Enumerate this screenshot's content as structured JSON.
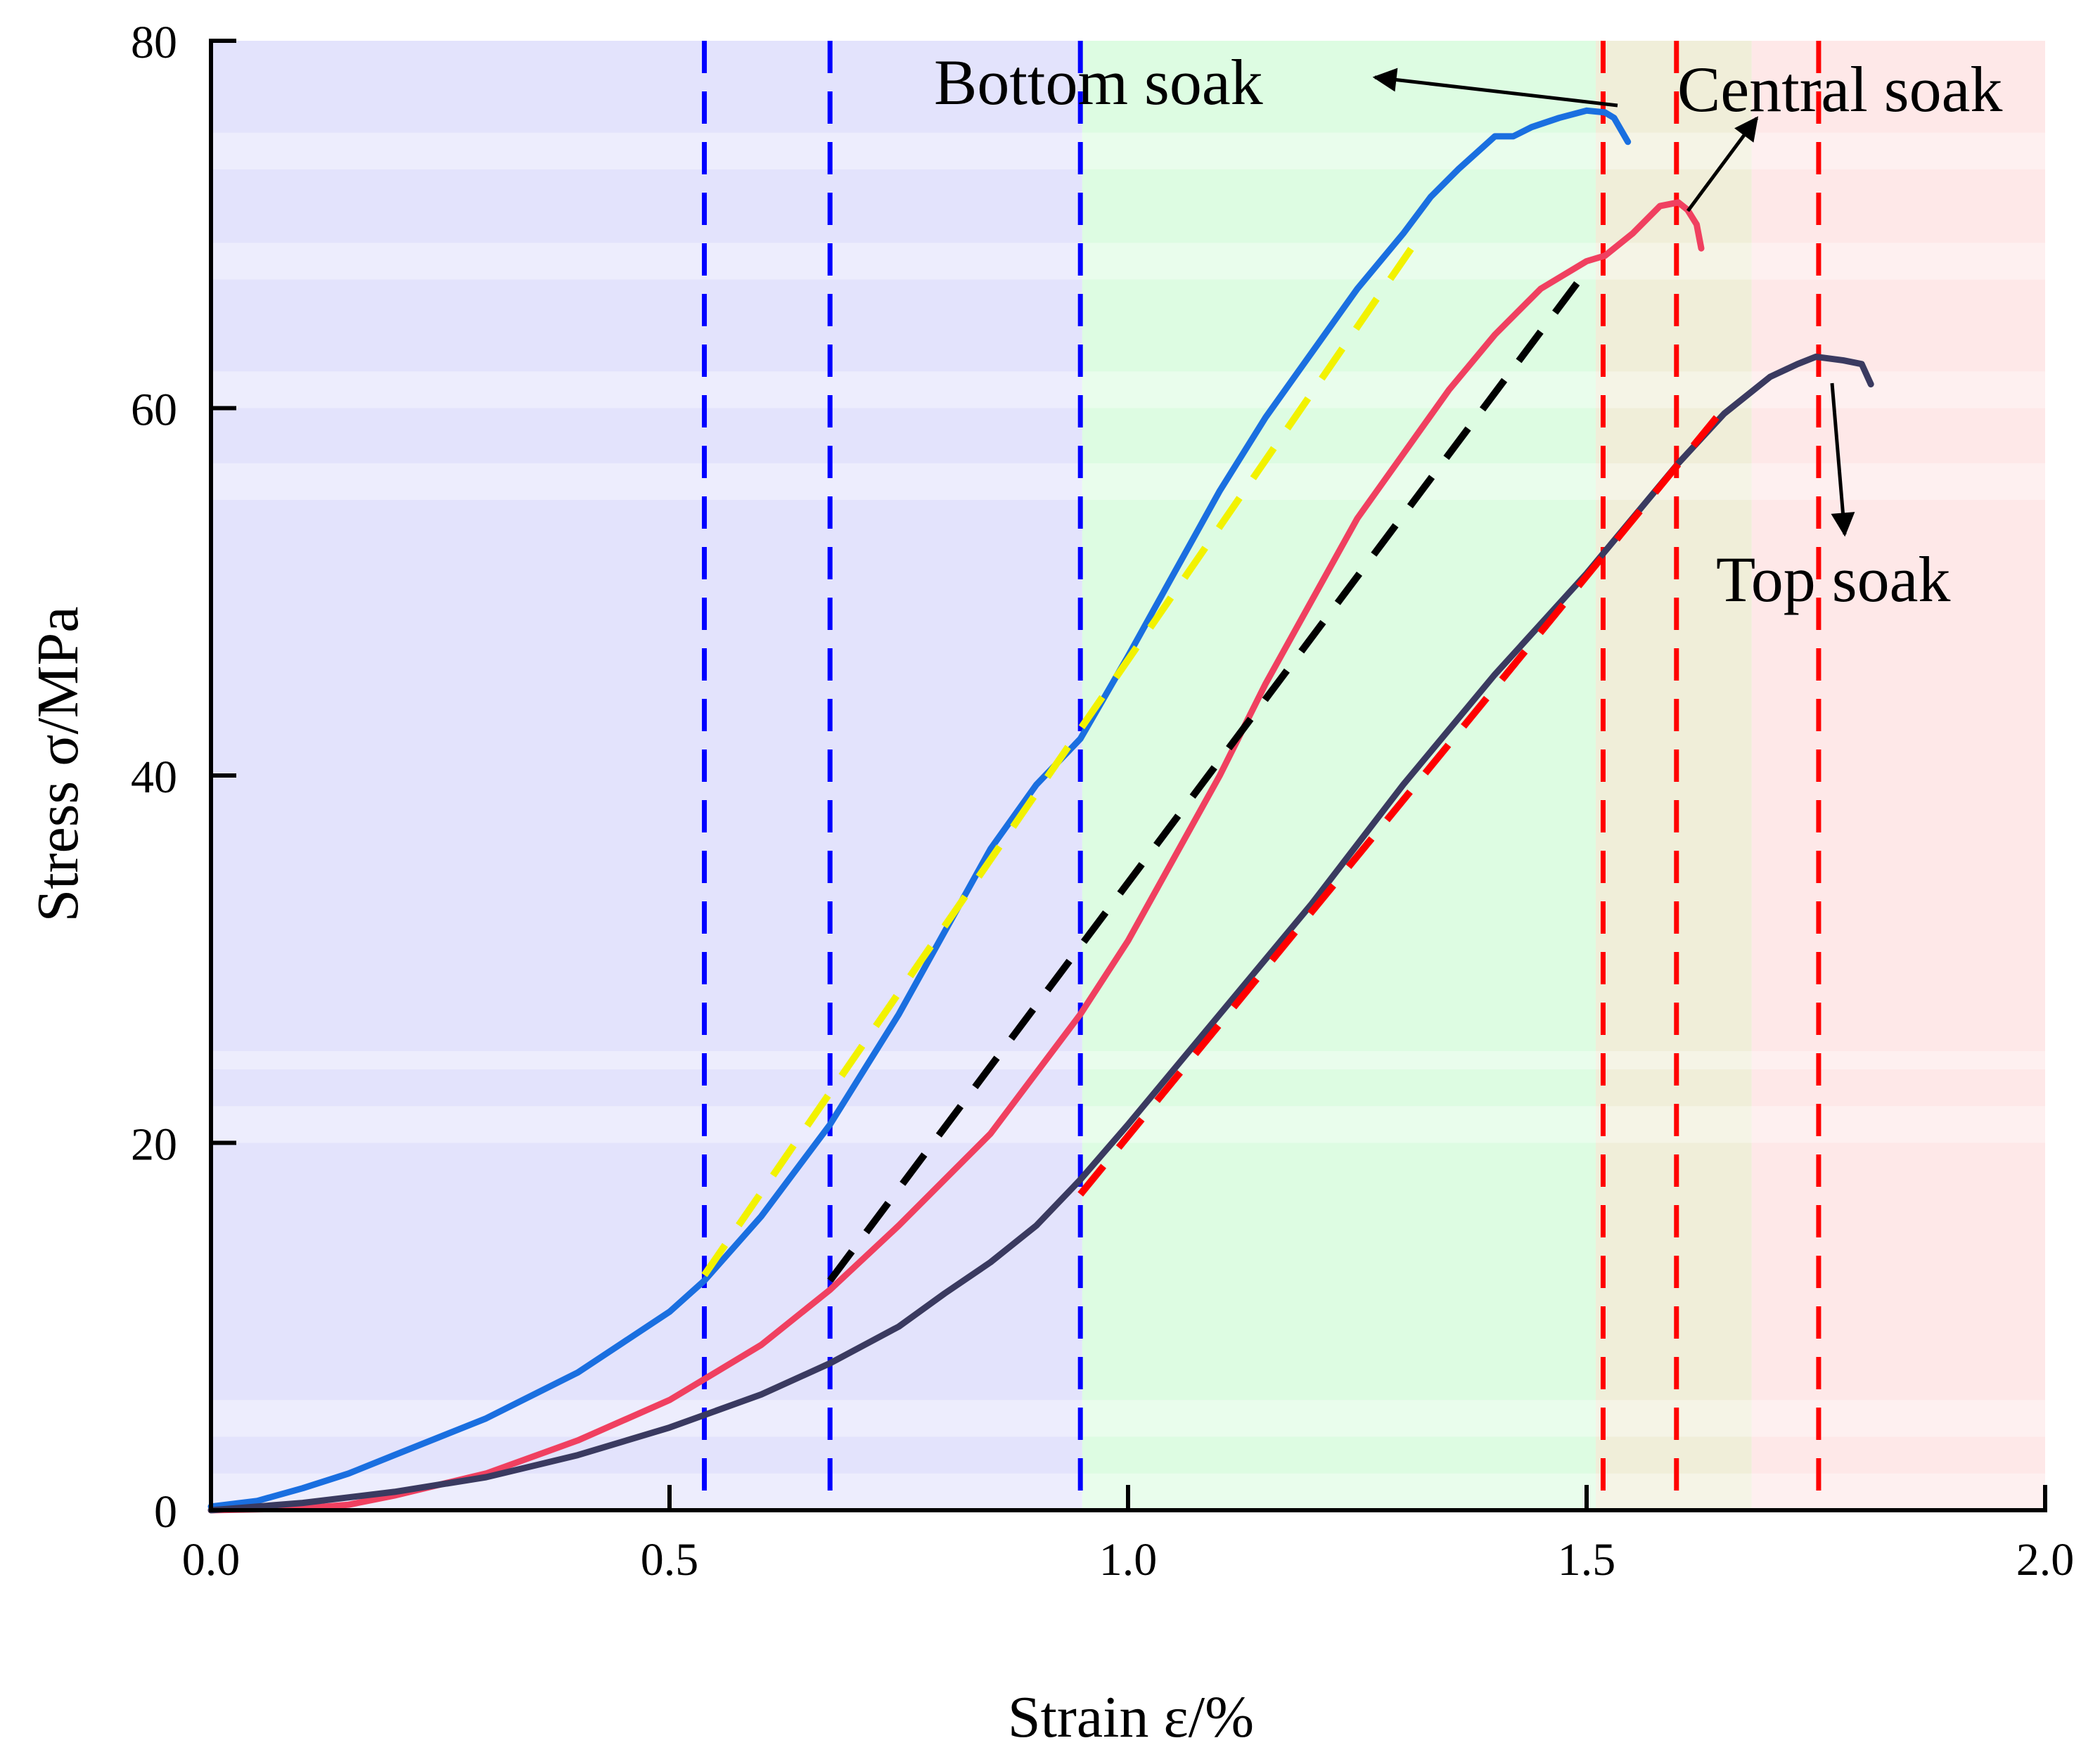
{
  "chart_data": {
    "type": "line",
    "title": "",
    "xlabel": "Strain ε/%",
    "ylabel": "Stress σ/MPa",
    "xlim": [
      0,
      2.0
    ],
    "ylim": [
      0,
      80
    ],
    "xticks": [
      0.0,
      0.5,
      1.0,
      1.5,
      2.0
    ],
    "xtick_labels": [
      "0.0",
      "0.5",
      "1.0",
      "1.5",
      "2.0"
    ],
    "yticks": [
      0,
      20,
      40,
      60,
      80
    ],
    "ytick_labels": [
      "0",
      "20",
      "40",
      "60",
      "80"
    ],
    "grid": false,
    "regions": [
      {
        "name": "region-blue",
        "x_start": 0.0,
        "x_end": 0.95,
        "color": "#d9d9fb"
      },
      {
        "name": "region-green",
        "x_start": 0.95,
        "x_end": 1.51,
        "color": "#d2fbd8"
      },
      {
        "name": "region-olive",
        "x_start": 1.51,
        "x_end": 1.68,
        "color": "#ebe8cc"
      },
      {
        "name": "region-pink",
        "x_start": 1.68,
        "x_end": 2.0,
        "color": "#fde0e0"
      }
    ],
    "vertical_lines": [
      {
        "x": 0.538,
        "color": "#0000ff"
      },
      {
        "x": 0.675,
        "color": "#0000ff"
      },
      {
        "x": 0.948,
        "color": "#0000ff"
      },
      {
        "x": 1.518,
        "color": "#ff0000"
      },
      {
        "x": 1.598,
        "color": "#ff0000"
      },
      {
        "x": 1.753,
        "color": "#ff0000"
      }
    ],
    "series": [
      {
        "name": "Bottom soak",
        "color": "#1a6fe0",
        "x": [
          0.0,
          0.05,
          0.1,
          0.15,
          0.2,
          0.3,
          0.4,
          0.5,
          0.538,
          0.6,
          0.675,
          0.7,
          0.75,
          0.8,
          0.85,
          0.9,
          0.948,
          1.0,
          1.05,
          1.1,
          1.15,
          1.2,
          1.25,
          1.3,
          1.33,
          1.36,
          1.4,
          1.42,
          1.44,
          1.47,
          1.5,
          1.52,
          1.53,
          1.545
        ],
        "y": [
          0.2,
          0.5,
          1.2,
          2.0,
          3.0,
          5.0,
          7.5,
          10.8,
          12.5,
          16.0,
          21.0,
          23.0,
          27.0,
          31.5,
          36.0,
          39.5,
          42.0,
          46.5,
          51.0,
          55.5,
          59.5,
          63.0,
          66.5,
          69.5,
          71.5,
          73.0,
          74.8,
          74.8,
          75.3,
          75.8,
          76.2,
          76.1,
          75.8,
          74.5
        ]
      },
      {
        "name": "Central soak",
        "color": "#f04060",
        "x": [
          0.0,
          0.1,
          0.15,
          0.2,
          0.3,
          0.4,
          0.5,
          0.6,
          0.675,
          0.75,
          0.85,
          0.948,
          1.0,
          1.05,
          1.1,
          1.15,
          1.2,
          1.25,
          1.3,
          1.35,
          1.4,
          1.45,
          1.5,
          1.52,
          1.55,
          1.58,
          1.6,
          1.61,
          1.62,
          1.625
        ],
        "y": [
          0.0,
          0.1,
          0.3,
          0.8,
          2.0,
          3.8,
          6.0,
          9.0,
          12.0,
          15.5,
          20.5,
          27.0,
          31.0,
          35.5,
          40.0,
          45.0,
          49.5,
          54.0,
          57.5,
          61.0,
          64.0,
          66.5,
          68.0,
          68.3,
          69.5,
          71.0,
          71.2,
          70.8,
          70.0,
          68.7
        ]
      },
      {
        "name": "Top soak",
        "color": "#3a3a60",
        "x": [
          0.0,
          0.1,
          0.2,
          0.3,
          0.4,
          0.5,
          0.6,
          0.675,
          0.75,
          0.8,
          0.85,
          0.9,
          0.948,
          1.0,
          1.1,
          1.2,
          1.3,
          1.4,
          1.5,
          1.55,
          1.6,
          1.65,
          1.7,
          1.73,
          1.75,
          1.78,
          1.8,
          1.81
        ],
        "y": [
          0.0,
          0.4,
          1.0,
          1.8,
          3.0,
          4.5,
          6.3,
          8.0,
          10.0,
          11.8,
          13.5,
          15.5,
          18.0,
          21.0,
          27.0,
          33.0,
          39.5,
          45.5,
          51.0,
          54.0,
          57.0,
          59.7,
          61.7,
          62.4,
          62.8,
          62.6,
          62.4,
          61.3
        ]
      }
    ],
    "fit_lines": [
      {
        "name": "fit-yellow",
        "color": "#f2f200",
        "x": [
          0.538,
          1.32
        ],
        "y": [
          12.8,
          69.5
        ]
      },
      {
        "name": "fit-black",
        "color": "#000000",
        "x": [
          0.675,
          1.5
        ],
        "y": [
          12.5,
          67.5
        ]
      },
      {
        "name": "fit-red",
        "color": "#ff0000",
        "x": [
          0.948,
          1.65
        ],
        "y": [
          17.2,
          60.0
        ]
      }
    ],
    "annotations": [
      {
        "text": "Bottom soak",
        "arrow_target": "bottom-soak-peak"
      },
      {
        "text": "Central soak",
        "arrow_target": "central-soak-peak"
      },
      {
        "text": "Top soak",
        "arrow_target": "top-soak-peak"
      }
    ]
  }
}
